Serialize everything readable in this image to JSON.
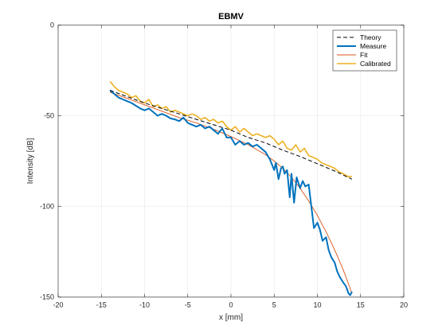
{
  "chart_data": {
    "type": "line",
    "title": "EBMV",
    "xlabel": "x [mm]",
    "ylabel": "Intensity [dB]",
    "xlim": [
      -20,
      20
    ],
    "ylim": [
      -150,
      0
    ],
    "xticks": [
      -20,
      -15,
      -10,
      -5,
      0,
      5,
      10,
      15,
      20
    ],
    "yticks": [
      0,
      -50,
      -100,
      -150
    ],
    "grid": true,
    "legend_position": "top-right",
    "series": [
      {
        "name": "Theory",
        "color": "#000000",
        "style": "dashed",
        "x": [
          -14,
          -12,
          -10,
          -8,
          -6,
          -4,
          -2,
          0,
          2,
          4,
          6,
          8,
          10,
          12,
          14
        ],
        "y": [
          -36,
          -39.5,
          -43,
          -46,
          -49,
          -52,
          -55,
          -58,
          -62,
          -65,
          -69,
          -72.5,
          -76.5,
          -80.5,
          -85
        ]
      },
      {
        "name": "Measure",
        "color": "#0072BD",
        "style": "solid",
        "x": [
          -14,
          -13.5,
          -13,
          -12.5,
          -12,
          -11.5,
          -11,
          -10.5,
          -10,
          -9.5,
          -9,
          -8.5,
          -8,
          -7.5,
          -7,
          -6.5,
          -6,
          -5.5,
          -5,
          -4.5,
          -4,
          -3.5,
          -3,
          -2.5,
          -2,
          -1.5,
          -1,
          -0.5,
          0,
          0.5,
          1,
          1.5,
          2,
          2.5,
          3,
          3.5,
          4,
          4.5,
          5,
          5.2,
          5.5,
          5.8,
          6,
          6.2,
          6.5,
          6.8,
          7,
          7.3,
          7.6,
          8,
          8.3,
          8.6,
          9,
          9.3,
          9.6,
          10,
          10.3,
          10.6,
          11,
          11.3,
          11.6,
          12,
          12.3,
          12.6,
          13,
          13.3,
          13.6,
          13.8,
          14
        ],
        "y": [
          -36,
          -38,
          -40,
          -41,
          -42,
          -43,
          -44.5,
          -46,
          -47,
          -46,
          -48,
          -50,
          -49,
          -50,
          -51.5,
          -52,
          -53,
          -51,
          -54,
          -55,
          -56,
          -55,
          -57,
          -56,
          -58,
          -60,
          -57,
          -62,
          -62,
          -66,
          -64,
          -66,
          -65,
          -67,
          -66,
          -68,
          -70,
          -74,
          -80,
          -76,
          -85,
          -79,
          -78,
          -82,
          -80,
          -95,
          -82,
          -98,
          -84,
          -90,
          -86,
          -89,
          -88,
          -100,
          -112,
          -109,
          -113,
          -119,
          -117,
          -124,
          -128,
          -131,
          -136,
          -139,
          -142,
          -144,
          -148,
          -149,
          -147
        ]
      },
      {
        "name": "Fit",
        "color": "#D95319",
        "style": "solid",
        "x": [
          -14,
          -12,
          -10,
          -8,
          -6,
          -4,
          -2,
          0,
          2,
          4,
          5,
          6,
          7,
          8,
          9,
          10,
          11,
          12,
          13,
          14
        ],
        "y": [
          -37,
          -40.5,
          -44,
          -47.5,
          -51,
          -54,
          -57.5,
          -61.5,
          -66,
          -71.5,
          -75,
          -79,
          -84,
          -90,
          -97,
          -105,
          -114,
          -124,
          -135,
          -148
        ]
      },
      {
        "name": "Calibrated",
        "color": "#EDB120",
        "style": "solid",
        "x": [
          -14,
          -13.5,
          -13,
          -12.5,
          -12,
          -11.5,
          -11,
          -10.5,
          -10,
          -9.5,
          -9,
          -8.5,
          -8,
          -7.5,
          -7,
          -6.5,
          -6,
          -5.5,
          -5,
          -4.5,
          -4,
          -3.5,
          -3,
          -2.5,
          -2,
          -1.5,
          -1,
          -0.5,
          0,
          0.5,
          1,
          1.5,
          2,
          2.5,
          3,
          3.5,
          4,
          4.5,
          5,
          5.5,
          6,
          6.5,
          7,
          7.5,
          8,
          8.5,
          9,
          9.5,
          10,
          10.5,
          11,
          11.5,
          12,
          12.5,
          13,
          13.5,
          14
        ],
        "y": [
          -31,
          -34,
          -36,
          -37,
          -38,
          -40,
          -39,
          -42,
          -43,
          -41,
          -45,
          -44,
          -46,
          -45,
          -48,
          -47,
          -48,
          -49,
          -50,
          -49,
          -50,
          -52,
          -51,
          -53,
          -52,
          -54,
          -53,
          -56,
          -58,
          -56,
          -59,
          -57,
          -59,
          -61,
          -60,
          -61,
          -62,
          -61,
          -63,
          -66,
          -64,
          -68,
          -69,
          -66,
          -70,
          -68,
          -72,
          -73,
          -74,
          -76,
          -77,
          -78,
          -79,
          -81,
          -82,
          -83.5,
          -83.5
        ]
      }
    ]
  }
}
